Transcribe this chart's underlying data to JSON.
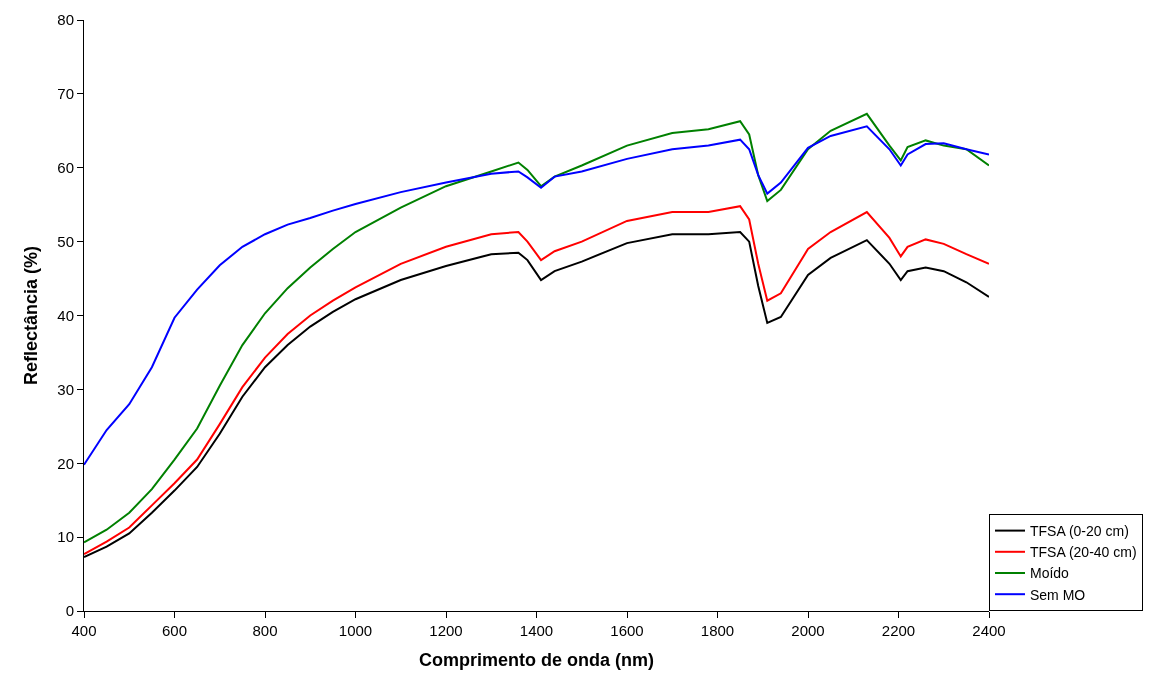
{
  "chart_data": {
    "type": "line",
    "xlabel": "Comprimento de onda (nm)",
    "ylabel": "Reflectância (%)",
    "x": [
      400,
      450,
      500,
      550,
      600,
      650,
      700,
      750,
      800,
      850,
      900,
      950,
      1000,
      1100,
      1200,
      1300,
      1360,
      1380,
      1410,
      1440,
      1500,
      1600,
      1700,
      1780,
      1850,
      1870,
      1890,
      1910,
      1940,
      2000,
      2050,
      2130,
      2180,
      2205,
      2220,
      2260,
      2300,
      2350,
      2400
    ],
    "series": [
      {
        "name": "TFSA (0-20 cm)",
        "color": "#000000",
        "values": [
          7.3,
          8.7,
          10.5,
          13.3,
          16.3,
          19.5,
          24,
          29,
          33,
          36,
          38.5,
          40.5,
          42.2,
          44.8,
          46.7,
          48.3,
          48.5,
          47.5,
          44.8,
          46,
          47.3,
          49.8,
          51,
          51,
          51.3,
          50,
          44,
          39,
          39.8,
          45.5,
          47.8,
          50.2,
          47,
          44.8,
          46,
          46.5,
          46,
          44.5,
          42.5
        ]
      },
      {
        "name": "TFSA (20-40 cm)",
        "color": "#ff0000",
        "values": [
          7.7,
          9.4,
          11.3,
          14.3,
          17.3,
          20.5,
          25.3,
          30.3,
          34.3,
          37.5,
          40,
          42,
          43.8,
          47,
          49.3,
          51,
          51.3,
          50,
          47.5,
          48.7,
          50,
          52.8,
          54,
          54,
          54.8,
          53,
          47,
          42,
          43,
          49,
          51.3,
          54,
          50.5,
          48,
          49.3,
          50.3,
          49.7,
          48.3,
          47
        ]
      },
      {
        "name": "Moído",
        "color": "#008000",
        "values": [
          9.3,
          11,
          13.3,
          16.5,
          20.5,
          24.7,
          30.5,
          36,
          40.3,
          43.7,
          46.5,
          49,
          51.3,
          54.6,
          57.5,
          59.5,
          60.7,
          59.7,
          57.5,
          58.8,
          60.3,
          63,
          64.7,
          65.2,
          66.3,
          64.5,
          59,
          55.5,
          57,
          62.5,
          65,
          67.3,
          63,
          61,
          62.8,
          63.7,
          63,
          62.5,
          60.3
        ]
      },
      {
        "name": "Sem MO",
        "color": "#0000ff",
        "values": [
          19.8,
          24.5,
          28,
          33,
          39.7,
          43.5,
          46.8,
          49.3,
          51,
          52.3,
          53.2,
          54.2,
          55.1,
          56.7,
          58,
          59.2,
          59.5,
          58.7,
          57.3,
          58.8,
          59.5,
          61.2,
          62.5,
          63,
          63.8,
          62.5,
          59,
          56.5,
          58,
          62.7,
          64.3,
          65.6,
          62.5,
          60.3,
          61.8,
          63.2,
          63.3,
          62.5,
          61.8
        ]
      }
    ],
    "xlim": [
      400,
      2400
    ],
    "xticks": [
      400,
      600,
      800,
      1000,
      1200,
      1400,
      1600,
      1800,
      2000,
      2200,
      2400
    ],
    "ylim": [
      0,
      80
    ],
    "yticks": [
      0,
      10,
      20,
      30,
      40,
      50,
      60,
      70,
      80
    ],
    "legend": "bottom right",
    "marker": "none",
    "line_style": "solid"
  }
}
